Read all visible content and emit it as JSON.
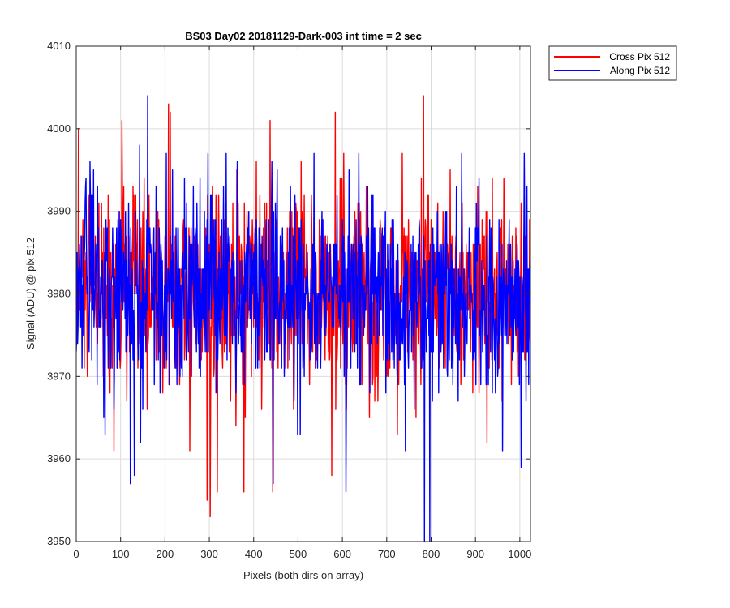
{
  "chart_data": {
    "type": "line",
    "title": "BS03 Day02 20181129-Dark-003 int time = 2 sec",
    "xlabel": "Pixels (both dirs on array)",
    "ylabel": "Signal (ADU) @ pix 512",
    "xlim": [
      0,
      1024
    ],
    "ylim": [
      3950,
      4010
    ],
    "xticks": [
      0,
      100,
      200,
      300,
      400,
      500,
      600,
      700,
      800,
      900,
      1000
    ],
    "yticks": [
      3950,
      3960,
      3970,
      3980,
      3990,
      4000,
      4010
    ],
    "grid": true,
    "legend_position": "outside-top-right",
    "noise_model": {
      "length": 1024,
      "mean": 3980,
      "sigma": 6
    },
    "series": [
      {
        "name": "Cross Pix 512",
        "color": "#ff0000",
        "peaks": [
          {
            "x": 5,
            "y": 4000
          },
          {
            "x": 103,
            "y": 4001
          },
          {
            "x": 208,
            "y": 4003
          },
          {
            "x": 212,
            "y": 4002
          },
          {
            "x": 437,
            "y": 4001
          },
          {
            "x": 584,
            "y": 4002
          },
          {
            "x": 783,
            "y": 4004
          },
          {
            "x": 302,
            "y": 3953
          },
          {
            "x": 295,
            "y": 3955
          },
          {
            "x": 318,
            "y": 3956
          },
          {
            "x": 378,
            "y": 3956
          },
          {
            "x": 443,
            "y": 3956
          },
          {
            "x": 576,
            "y": 3958
          },
          {
            "x": 256,
            "y": 3961
          },
          {
            "x": 85,
            "y": 3961
          }
        ]
      },
      {
        "name": "Along Pix 512",
        "color": "#0000ff",
        "peaks": [
          {
            "x": 161,
            "y": 4004
          },
          {
            "x": 143,
            "y": 3998
          },
          {
            "x": 203,
            "y": 3997
          },
          {
            "x": 785,
            "y": 3950
          },
          {
            "x": 797,
            "y": 3950
          },
          {
            "x": 122,
            "y": 3957
          },
          {
            "x": 131,
            "y": 3958
          },
          {
            "x": 444,
            "y": 3957
          },
          {
            "x": 608,
            "y": 3956
          },
          {
            "x": 742,
            "y": 3961
          },
          {
            "x": 961,
            "y": 3961
          },
          {
            "x": 1003,
            "y": 3959
          }
        ]
      }
    ]
  }
}
